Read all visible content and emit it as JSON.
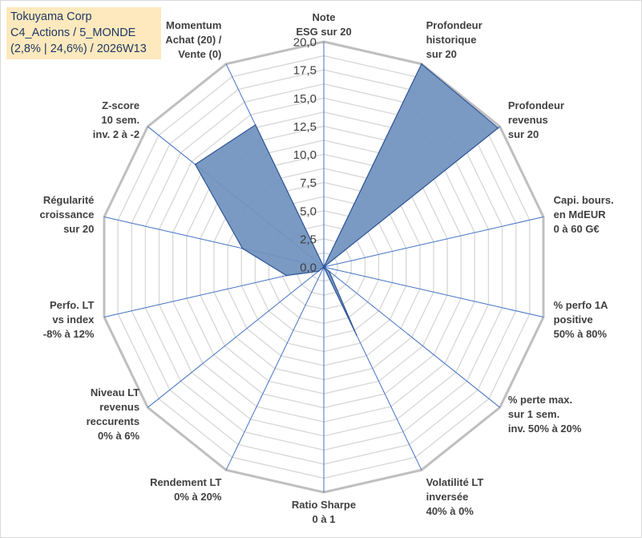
{
  "header": {
    "lines": [
      "Tokuyama Corp",
      "C4_Actions / 5_MONDE",
      "(2,8% | 24,6%) / 2026W13"
    ]
  },
  "colors": {
    "title_bg": "#fde9bd",
    "title_text": "#1f3864",
    "series_fill": "#7092be",
    "series_stroke": "#2f5597",
    "grid_outer": "#bfbfbf",
    "grid_inner": "#d9d9d9",
    "spoke": "#4472c4",
    "label_text": "#404040"
  },
  "chart_data": {
    "type": "radar",
    "rmin": 0,
    "rmax": 20,
    "ticks": [
      "0,0",
      "2,5",
      "5,0",
      "7,5",
      "10,0",
      "12,5",
      "15,0",
      "17,5",
      "20,0"
    ],
    "tick_values": [
      0,
      2.5,
      5,
      7.5,
      10,
      12.5,
      15,
      17.5,
      20
    ],
    "minor_step": 1.25,
    "grid": true,
    "legend": "none",
    "categories": [
      [
        "Note",
        "ESG sur 20"
      ],
      [
        "Profondeur",
        "historique",
        "sur 20"
      ],
      [
        "Profondeur",
        "revenus",
        "sur 20"
      ],
      [
        "Capi. bours.",
        "en MdEUR",
        "0 à 60 G€"
      ],
      [
        "% perfo 1A",
        "positive",
        "50% à 80%"
      ],
      [
        "% perte max.",
        "sur 1 sem.",
        "inv. 50% à 20%"
      ],
      [
        "Volatilité LT",
        "inversée",
        "40% à 0%"
      ],
      [
        "Ratio Sharpe",
        "0 à 1"
      ],
      [
        "Rendement LT",
        "0% à 20%"
      ],
      [
        "Niveau LT",
        "revenus",
        "reccurents",
        "0% à 6%"
      ],
      [
        "Perfo. LT",
        "vs index",
        "-8% à 12%"
      ],
      [
        "Régularité",
        "croissance",
        "sur 20"
      ],
      [
        "Z-score",
        "10 sem.",
        "inv. 2 à -2"
      ],
      [
        "Momentum",
        "Achat (20) /",
        "Vente (0)"
      ]
    ],
    "series": [
      {
        "values": [
          0,
          20,
          19.8,
          0,
          0,
          0.6,
          6.7,
          0,
          0,
          0.6,
          3.4,
          7.4,
          14.6,
          14.0
        ]
      }
    ]
  }
}
